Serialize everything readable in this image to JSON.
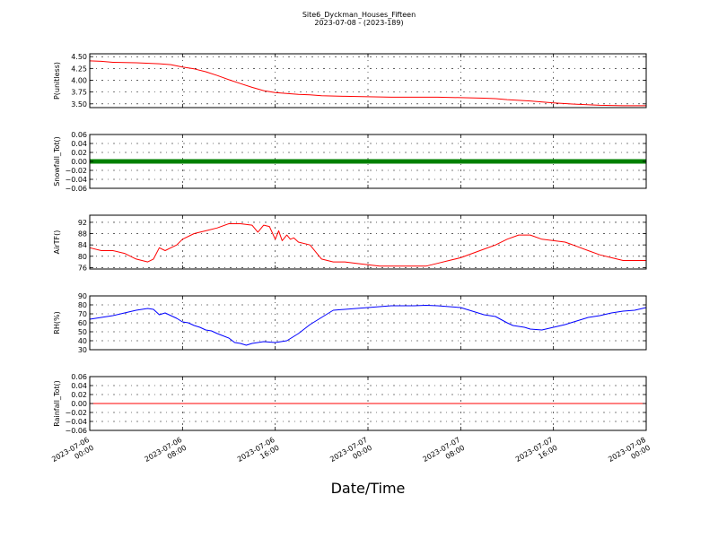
{
  "title": "Site6_Dyckman_Houses_Fifteen",
  "subtitle": "2023-07-08 - (2023-189)",
  "xlabel": "Date/Time",
  "colors": {
    "red": "#ff0000",
    "green": "#008000",
    "blue": "#0000ff",
    "grid": "#000000"
  },
  "chart_data": [
    {
      "type": "line",
      "ylabel": "P(unitless)",
      "ylim": [
        3.42,
        4.56
      ],
      "yticks": [
        "4.50",
        "4.25",
        "4.00",
        "3.75",
        "3.50"
      ],
      "ytick_values": [
        4.5,
        4.25,
        4.0,
        3.75,
        3.5
      ],
      "grid": true,
      "series": [
        {
          "color": "#ff0000",
          "x_hours": [
            0,
            1,
            2,
            4,
            6,
            7,
            8,
            9,
            10,
            11,
            12,
            13,
            14,
            15,
            16,
            17,
            18,
            19,
            20,
            22,
            24,
            26,
            28,
            30,
            32,
            34,
            35,
            36,
            38,
            40,
            42,
            44,
            46,
            48
          ],
          "y": [
            4.41,
            4.4,
            4.38,
            4.37,
            4.35,
            4.33,
            4.28,
            4.24,
            4.18,
            4.1,
            4.01,
            3.93,
            3.85,
            3.78,
            3.74,
            3.72,
            3.7,
            3.69,
            3.67,
            3.66,
            3.65,
            3.64,
            3.64,
            3.64,
            3.63,
            3.62,
            3.61,
            3.59,
            3.56,
            3.52,
            3.49,
            3.47,
            3.46,
            3.46
          ]
        }
      ]
    },
    {
      "type": "line",
      "ylabel": "Snowfall_Tot()",
      "ylim": [
        -0.06,
        0.06
      ],
      "yticks": [
        "0.06",
        "0.04",
        "0.02",
        "0.00",
        "−0.02",
        "−0.04",
        "−0.06"
      ],
      "ytick_values": [
        0.06,
        0.04,
        0.02,
        0.0,
        -0.02,
        -0.04,
        -0.06
      ],
      "grid": true,
      "series": [
        {
          "color": "#008000",
          "marker": "dot",
          "x_hours": [
            0,
            48
          ],
          "y": [
            0.0,
            0.0
          ]
        }
      ]
    },
    {
      "type": "line",
      "ylabel": "AirTF()",
      "ylim": [
        75.5,
        94.5
      ],
      "yticks": [
        "92",
        "88",
        "84",
        "80",
        "76"
      ],
      "ytick_values": [
        92,
        88,
        84,
        80,
        76
      ],
      "grid": true,
      "series": [
        {
          "color": "#ff0000",
          "x_hours": [
            0,
            1,
            2,
            3,
            4,
            5,
            5.5,
            6,
            6.5,
            7,
            7.5,
            8,
            9,
            10,
            11,
            12,
            13,
            14,
            14.5,
            15,
            15.5,
            16,
            16.3,
            16.6,
            17,
            17.3,
            17.6,
            18,
            19,
            20,
            21,
            22,
            23,
            24,
            25,
            26,
            27,
            28,
            29,
            30,
            31,
            32,
            33,
            34,
            35,
            36,
            37,
            38,
            39,
            40,
            41,
            42,
            43,
            44,
            45,
            46,
            47,
            48
          ],
          "y": [
            83,
            82,
            82,
            81,
            79,
            78,
            79,
            83,
            82,
            83,
            84,
            86,
            88,
            89,
            90,
            91.5,
            91.5,
            91,
            88.5,
            91,
            90.5,
            86,
            89,
            85.5,
            87.5,
            86,
            86.5,
            85,
            84,
            79,
            78,
            78,
            77.5,
            77,
            76.5,
            76.5,
            76.5,
            76.5,
            76.5,
            77.5,
            78.5,
            79.5,
            81,
            82.5,
            84,
            86,
            87.5,
            87.5,
            86,
            85.5,
            85,
            83.5,
            82,
            80.5,
            79.5,
            78.5,
            78.5,
            78.5
          ]
        }
      ]
    },
    {
      "type": "line",
      "ylabel": "RH(%)",
      "ylim": [
        30,
        90
      ],
      "yticks": [
        "90",
        "80",
        "70",
        "60",
        "50",
        "40",
        "30"
      ],
      "ytick_values": [
        90,
        80,
        70,
        60,
        50,
        40,
        30
      ],
      "grid": true,
      "series": [
        {
          "color": "#0000ff",
          "x_hours": [
            0,
            1,
            2,
            3,
            4,
            4.5,
            5,
            5.5,
            6,
            6.5,
            7,
            7.5,
            8,
            8.5,
            9,
            9.5,
            10,
            10.5,
            11,
            12,
            12.5,
            13,
            13.5,
            14,
            15,
            16,
            17,
            18,
            19,
            20,
            21,
            22,
            23,
            24,
            25,
            26,
            27,
            28,
            29,
            30,
            31,
            32,
            33,
            34,
            35,
            36,
            36.5,
            37,
            37.5,
            38,
            39,
            40,
            41,
            42,
            43,
            44,
            45,
            46,
            47,
            48
          ],
          "y": [
            64,
            66,
            68,
            71,
            74,
            75,
            76,
            75,
            69,
            71,
            68,
            65,
            61,
            60,
            57,
            55,
            52,
            51,
            48,
            43,
            38,
            37,
            35,
            37,
            39,
            38,
            40,
            48,
            58,
            66,
            74,
            75,
            76,
            77,
            78,
            79,
            79,
            79,
            79.5,
            79,
            78,
            77,
            73,
            69,
            67,
            60,
            57,
            56,
            55,
            53,
            52,
            55,
            58,
            62,
            66,
            68,
            71,
            73,
            74,
            77
          ]
        }
      ]
    },
    {
      "type": "line",
      "ylabel": "Rainfall_Tot()",
      "ylim": [
        -0.06,
        0.06
      ],
      "yticks": [
        "0.06",
        "0.04",
        "0.02",
        "0.00",
        "−0.02",
        "−0.04",
        "−0.06"
      ],
      "ytick_values": [
        0.06,
        0.04,
        0.02,
        0.0,
        -0.02,
        -0.04,
        -0.06
      ],
      "grid": true,
      "series": [
        {
          "color": "#ff0000",
          "x_hours": [
            0,
            48
          ],
          "y": [
            0.0,
            0.0
          ]
        }
      ]
    }
  ],
  "x_axis": {
    "range_hours": [
      0,
      48
    ],
    "tick_hours": [
      0,
      8,
      16,
      24,
      32,
      40,
      48
    ],
    "tick_labels": [
      [
        "2023-07-06",
        "00:00"
      ],
      [
        "2023-07-06",
        "08:00"
      ],
      [
        "2023-07-06",
        "16:00"
      ],
      [
        "2023-07-07",
        "00:00"
      ],
      [
        "2023-07-07",
        "08:00"
      ],
      [
        "2023-07-07",
        "16:00"
      ],
      [
        "2023-07-08",
        "00:00"
      ]
    ]
  }
}
